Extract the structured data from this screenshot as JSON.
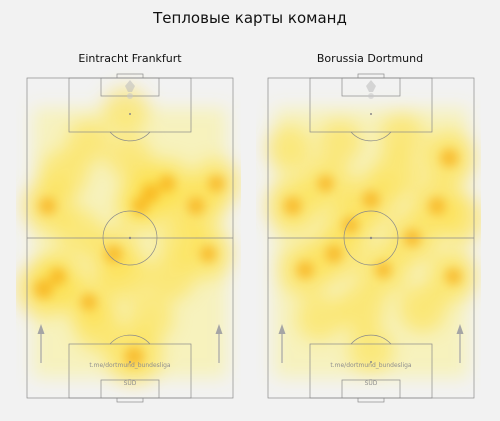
{
  "title": "Тепловые карты команд",
  "teams": [
    {
      "name": "Eintracht Frankfurt"
    },
    {
      "name": "Borussia Dortmund"
    }
  ],
  "watermark": {
    "channel": "t.me/dortmund_bundesliga",
    "brand": "SÜD"
  },
  "colors": {
    "background": "#f2f2f2",
    "pitch_line": "#8a8a8a",
    "heat_low": "#fff25a",
    "heat_mid": "#fde047",
    "heat_high": "#f59e0b"
  },
  "chart_data": [
    {
      "type": "heatmap",
      "title": "Eintracht Frankfurt",
      "x_range": [
        0,
        100
      ],
      "y_range": [
        0,
        100
      ],
      "hotspots": [
        {
          "x": 8,
          "y": 66,
          "w": 1.2
        },
        {
          "x": 10,
          "y": 40,
          "w": 1.0
        },
        {
          "x": 18,
          "y": 30,
          "w": 0.8
        },
        {
          "x": 15,
          "y": 62,
          "w": 0.9
        },
        {
          "x": 30,
          "y": 70,
          "w": 0.9
        },
        {
          "x": 35,
          "y": 78,
          "w": 0.8
        },
        {
          "x": 42,
          "y": 55,
          "w": 1.0
        },
        {
          "x": 48,
          "y": 62,
          "w": 0.8
        },
        {
          "x": 55,
          "y": 40,
          "w": 0.9
        },
        {
          "x": 60,
          "y": 36,
          "w": 1.1
        },
        {
          "x": 68,
          "y": 33,
          "w": 0.9
        },
        {
          "x": 70,
          "y": 62,
          "w": 0.8
        },
        {
          "x": 82,
          "y": 40,
          "w": 1.0
        },
        {
          "x": 88,
          "y": 55,
          "w": 0.9
        },
        {
          "x": 92,
          "y": 33,
          "w": 0.9
        },
        {
          "x": 25,
          "y": 48,
          "w": 0.7
        },
        {
          "x": 75,
          "y": 50,
          "w": 0.7
        },
        {
          "x": 50,
          "y": 25,
          "w": 0.6
        },
        {
          "x": 52,
          "y": 87,
          "w": 1.2
        },
        {
          "x": 48,
          "y": 10,
          "w": 0.7
        },
        {
          "x": 30,
          "y": 20,
          "w": 0.6
        },
        {
          "x": 60,
          "y": 75,
          "w": 0.7
        }
      ]
    },
    {
      "type": "heatmap",
      "title": "Borussia Dortmund",
      "x_range": [
        0,
        100
      ],
      "y_range": [
        0,
        100
      ],
      "hotspots": [
        {
          "x": 12,
          "y": 40,
          "w": 1.1
        },
        {
          "x": 18,
          "y": 60,
          "w": 1.0
        },
        {
          "x": 28,
          "y": 33,
          "w": 0.9
        },
        {
          "x": 32,
          "y": 55,
          "w": 1.0
        },
        {
          "x": 40,
          "y": 46,
          "w": 0.9
        },
        {
          "x": 50,
          "y": 38,
          "w": 1.0
        },
        {
          "x": 56,
          "y": 60,
          "w": 0.9
        },
        {
          "x": 62,
          "y": 30,
          "w": 0.8
        },
        {
          "x": 70,
          "y": 50,
          "w": 1.0
        },
        {
          "x": 82,
          "y": 40,
          "w": 1.0
        },
        {
          "x": 88,
          "y": 25,
          "w": 1.1
        },
        {
          "x": 90,
          "y": 62,
          "w": 0.9
        },
        {
          "x": 75,
          "y": 72,
          "w": 0.8
        },
        {
          "x": 45,
          "y": 72,
          "w": 0.8
        },
        {
          "x": 25,
          "y": 75,
          "w": 0.7
        },
        {
          "x": 50,
          "y": 85,
          "w": 0.7
        },
        {
          "x": 35,
          "y": 20,
          "w": 0.6
        },
        {
          "x": 65,
          "y": 18,
          "w": 0.6
        },
        {
          "x": 10,
          "y": 22,
          "w": 0.7
        },
        {
          "x": 94,
          "y": 44,
          "w": 0.8
        }
      ]
    }
  ]
}
